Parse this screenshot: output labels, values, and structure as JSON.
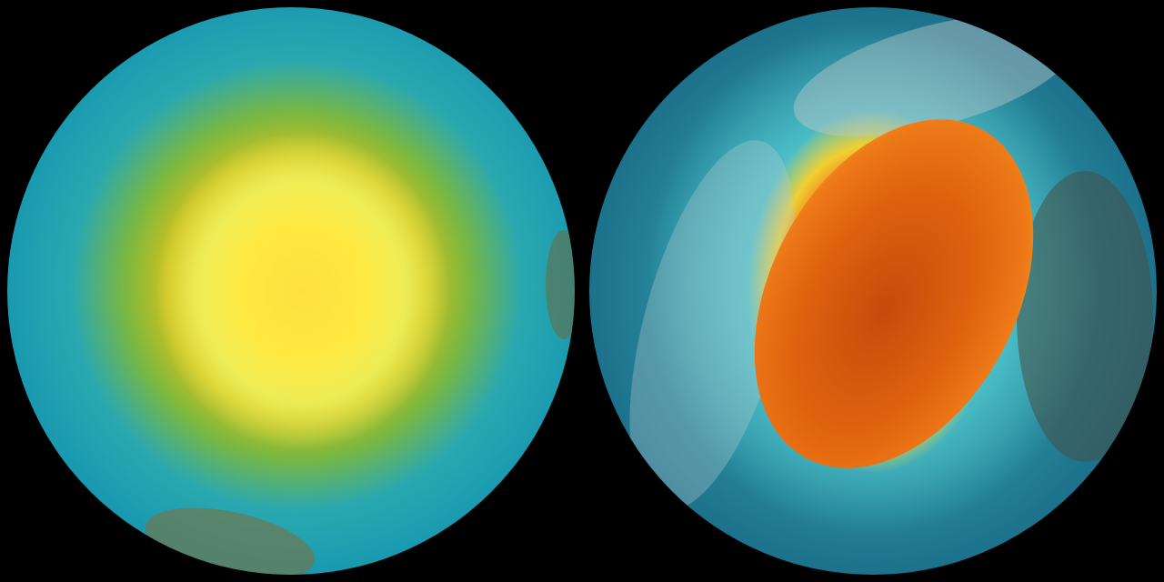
{
  "colors": {
    "background": "#000000",
    "ocean": "#1a9ab0",
    "left_core": "#ffe840",
    "right_core": "#e0620e"
  },
  "globes": [
    {
      "id": "left-globe"
    },
    {
      "id": "right-globe"
    }
  ]
}
